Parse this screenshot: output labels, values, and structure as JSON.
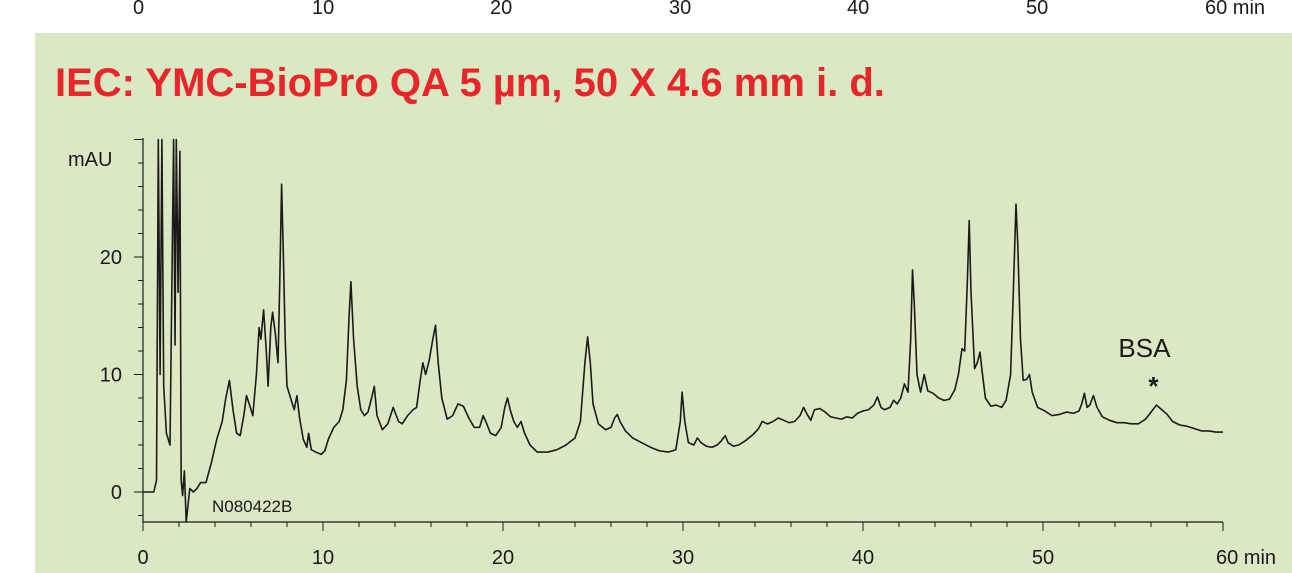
{
  "colors": {
    "panel_background": "#dbe8c4",
    "title": "#e8262a",
    "trace": "#1a1a1a"
  },
  "top_strip": {
    "tick_labels": [
      "0",
      "10",
      "20",
      "30",
      "40",
      "50",
      "60 min"
    ]
  },
  "chart_data": {
    "type": "line",
    "title": "IEC: YMC-BioPro QA 5 µm, 50 X 4.6 mm i. d.",
    "xlabel": "min",
    "ylabel": "mAU",
    "xlim": [
      0,
      60
    ],
    "ylim": [
      -2.8,
      30
    ],
    "x_ticks": [
      0,
      10,
      20,
      30,
      40,
      50,
      60
    ],
    "x_tick_labels": [
      "0",
      "10",
      "20",
      "30",
      "40",
      "50",
      "60 min"
    ],
    "y_ticks": [
      0,
      10,
      20
    ],
    "y_tick_labels": [
      "0",
      "10",
      "20"
    ],
    "grid": false,
    "sample_code": "N080422B",
    "annotations": [
      {
        "label": "BSA",
        "marker": "*",
        "x": 56.3,
        "y": 7.4
      }
    ],
    "series": [
      {
        "points": [
          [
            0,
            0
          ],
          [
            0.6,
            0
          ],
          [
            0.75,
            1
          ],
          [
            0.85,
            30
          ],
          [
            0.95,
            10
          ],
          [
            1.05,
            30
          ],
          [
            1.15,
            9
          ],
          [
            1.3,
            5
          ],
          [
            1.5,
            4
          ],
          [
            1.7,
            30
          ],
          [
            1.78,
            12.5
          ],
          [
            1.85,
            30
          ],
          [
            1.95,
            17
          ],
          [
            2.05,
            29
          ],
          [
            2.12,
            1
          ],
          [
            2.2,
            -0.3
          ],
          [
            2.3,
            1.8
          ],
          [
            2.4,
            -2.7
          ],
          [
            2.6,
            0.3
          ],
          [
            2.8,
            0
          ],
          [
            3.0,
            0.3
          ],
          [
            3.2,
            0.8
          ],
          [
            3.5,
            0.8
          ],
          [
            3.8,
            2.5
          ],
          [
            4.1,
            4.5
          ],
          [
            4.4,
            6
          ],
          [
            4.6,
            8
          ],
          [
            4.8,
            9.5
          ],
          [
            5.0,
            7
          ],
          [
            5.2,
            5
          ],
          [
            5.4,
            4.8
          ],
          [
            5.6,
            6.5
          ],
          [
            5.75,
            8.2
          ],
          [
            5.9,
            7.5
          ],
          [
            6.1,
            6.5
          ],
          [
            6.3,
            10
          ],
          [
            6.45,
            14
          ],
          [
            6.55,
            13
          ],
          [
            6.7,
            15.5
          ],
          [
            6.85,
            12
          ],
          [
            6.95,
            9
          ],
          [
            7.1,
            14
          ],
          [
            7.2,
            15.3
          ],
          [
            7.35,
            13.5
          ],
          [
            7.5,
            11
          ],
          [
            7.6,
            18
          ],
          [
            7.7,
            26.2
          ],
          [
            7.8,
            20
          ],
          [
            7.9,
            13
          ],
          [
            8.0,
            9
          ],
          [
            8.2,
            8
          ],
          [
            8.4,
            7
          ],
          [
            8.55,
            8.2
          ],
          [
            8.7,
            6.3
          ],
          [
            8.9,
            4.5
          ],
          [
            9.1,
            3.8
          ],
          [
            9.2,
            5
          ],
          [
            9.35,
            3.6
          ],
          [
            9.6,
            3.4
          ],
          [
            9.9,
            3.2
          ],
          [
            10.1,
            3.5
          ],
          [
            10.3,
            4.5
          ],
          [
            10.6,
            5.5
          ],
          [
            10.9,
            6
          ],
          [
            11.1,
            7
          ],
          [
            11.3,
            9.5
          ],
          [
            11.45,
            15
          ],
          [
            11.55,
            17.9
          ],
          [
            11.7,
            13
          ],
          [
            11.9,
            9
          ],
          [
            12.1,
            7
          ],
          [
            12.3,
            6.5
          ],
          [
            12.5,
            6.8
          ],
          [
            12.7,
            8
          ],
          [
            12.85,
            9
          ],
          [
            13.0,
            6.5
          ],
          [
            13.3,
            5.3
          ],
          [
            13.6,
            5.8
          ],
          [
            13.9,
            7.2
          ],
          [
            14.2,
            6
          ],
          [
            14.4,
            5.8
          ],
          [
            14.7,
            6.5
          ],
          [
            15.0,
            7
          ],
          [
            15.2,
            7.2
          ],
          [
            15.4,
            9.5
          ],
          [
            15.55,
            11
          ],
          [
            15.7,
            10
          ],
          [
            15.9,
            11.2
          ],
          [
            16.1,
            13
          ],
          [
            16.25,
            14.2
          ],
          [
            16.4,
            11
          ],
          [
            16.6,
            8
          ],
          [
            16.9,
            6.2
          ],
          [
            17.2,
            6.5
          ],
          [
            17.5,
            7.5
          ],
          [
            17.8,
            7.3
          ],
          [
            18.1,
            6.3
          ],
          [
            18.4,
            5.5
          ],
          [
            18.7,
            5.5
          ],
          [
            18.9,
            6.5
          ],
          [
            19.1,
            5.8
          ],
          [
            19.3,
            5
          ],
          [
            19.6,
            4.8
          ],
          [
            19.9,
            5.5
          ],
          [
            20.1,
            7.2
          ],
          [
            20.25,
            8
          ],
          [
            20.4,
            7
          ],
          [
            20.6,
            6
          ],
          [
            20.8,
            5.5
          ],
          [
            21.0,
            6
          ],
          [
            21.2,
            5
          ],
          [
            21.5,
            4
          ],
          [
            21.9,
            3.4
          ],
          [
            22.5,
            3.4
          ],
          [
            23.0,
            3.6
          ],
          [
            23.5,
            4
          ],
          [
            24.0,
            4.6
          ],
          [
            24.3,
            6
          ],
          [
            24.55,
            11
          ],
          [
            24.7,
            13.2
          ],
          [
            24.85,
            11
          ],
          [
            25.0,
            7.5
          ],
          [
            25.3,
            5.8
          ],
          [
            25.7,
            5.3
          ],
          [
            26.0,
            5.5
          ],
          [
            26.2,
            6.3
          ],
          [
            26.35,
            6.6
          ],
          [
            26.5,
            6
          ],
          [
            26.8,
            5.2
          ],
          [
            27.2,
            4.6
          ],
          [
            27.7,
            4.2
          ],
          [
            28.2,
            3.8
          ],
          [
            28.7,
            3.5
          ],
          [
            29.2,
            3.4
          ],
          [
            29.6,
            3.6
          ],
          [
            29.85,
            6
          ],
          [
            29.95,
            8.5
          ],
          [
            30.1,
            6
          ],
          [
            30.3,
            4.2
          ],
          [
            30.6,
            4
          ],
          [
            30.8,
            4.6
          ],
          [
            31.0,
            4.2
          ],
          [
            31.3,
            3.9
          ],
          [
            31.6,
            3.8
          ],
          [
            31.9,
            4
          ],
          [
            32.1,
            4.3
          ],
          [
            32.35,
            4.8
          ],
          [
            32.5,
            4.2
          ],
          [
            32.8,
            3.9
          ],
          [
            33.1,
            4
          ],
          [
            33.5,
            4.4
          ],
          [
            33.9,
            4.9
          ],
          [
            34.2,
            5.4
          ],
          [
            34.4,
            6
          ],
          [
            34.7,
            5.8
          ],
          [
            35.0,
            6
          ],
          [
            35.3,
            6.3
          ],
          [
            35.6,
            6.1
          ],
          [
            35.9,
            5.9
          ],
          [
            36.2,
            6
          ],
          [
            36.5,
            6.5
          ],
          [
            36.7,
            7.2
          ],
          [
            36.9,
            6.6
          ],
          [
            37.1,
            6.1
          ],
          [
            37.3,
            7
          ],
          [
            37.6,
            7.1
          ],
          [
            37.9,
            6.8
          ],
          [
            38.2,
            6.4
          ],
          [
            38.5,
            6.3
          ],
          [
            38.8,
            6.2
          ],
          [
            39.1,
            6.4
          ],
          [
            39.4,
            6.3
          ],
          [
            39.7,
            6.7
          ],
          [
            40.0,
            6.9
          ],
          [
            40.3,
            7
          ],
          [
            40.6,
            7.4
          ],
          [
            40.8,
            8.1
          ],
          [
            41.0,
            7.2
          ],
          [
            41.2,
            7
          ],
          [
            41.5,
            7.2
          ],
          [
            41.7,
            7.8
          ],
          [
            41.9,
            7.5
          ],
          [
            42.1,
            8
          ],
          [
            42.3,
            9.2
          ],
          [
            42.5,
            8.5
          ],
          [
            42.65,
            13
          ],
          [
            42.75,
            18.9
          ],
          [
            42.85,
            16
          ],
          [
            43.0,
            10
          ],
          [
            43.2,
            8.5
          ],
          [
            43.4,
            10
          ],
          [
            43.6,
            8.6
          ],
          [
            43.9,
            8.4
          ],
          [
            44.2,
            8
          ],
          [
            44.5,
            7.8
          ],
          [
            44.8,
            7.9
          ],
          [
            45.1,
            8.7
          ],
          [
            45.3,
            10
          ],
          [
            45.5,
            12.2
          ],
          [
            45.65,
            12
          ],
          [
            45.8,
            18
          ],
          [
            45.9,
            23.1
          ],
          [
            46.0,
            17
          ],
          [
            46.2,
            10.5
          ],
          [
            46.35,
            11
          ],
          [
            46.5,
            11.9
          ],
          [
            46.6,
            10.5
          ],
          [
            46.8,
            8
          ],
          [
            47.1,
            7.3
          ],
          [
            47.4,
            7.4
          ],
          [
            47.7,
            7.2
          ],
          [
            47.95,
            7.8
          ],
          [
            48.2,
            10
          ],
          [
            48.35,
            17
          ],
          [
            48.5,
            24.5
          ],
          [
            48.6,
            21
          ],
          [
            48.75,
            13
          ],
          [
            48.9,
            9.5
          ],
          [
            49.1,
            9.6
          ],
          [
            49.25,
            10
          ],
          [
            49.4,
            8.5
          ],
          [
            49.7,
            7.2
          ],
          [
            50.1,
            6.9
          ],
          [
            50.5,
            6.5
          ],
          [
            50.9,
            6.6
          ],
          [
            51.3,
            6.8
          ],
          [
            51.7,
            6.7
          ],
          [
            52.0,
            6.9
          ],
          [
            52.15,
            7.5
          ],
          [
            52.3,
            8.4
          ],
          [
            52.45,
            7.2
          ],
          [
            52.6,
            7.4
          ],
          [
            52.8,
            8.2
          ],
          [
            53.0,
            7.2
          ],
          [
            53.3,
            6.4
          ],
          [
            53.7,
            6.1
          ],
          [
            54.1,
            5.9
          ],
          [
            54.5,
            5.9
          ],
          [
            54.9,
            5.8
          ],
          [
            55.3,
            5.8
          ],
          [
            55.7,
            6.2
          ],
          [
            56.0,
            6.8
          ],
          [
            56.3,
            7.4
          ],
          [
            56.6,
            7
          ],
          [
            56.9,
            6.6
          ],
          [
            57.2,
            6
          ],
          [
            57.6,
            5.7
          ],
          [
            58.0,
            5.6
          ],
          [
            58.4,
            5.4
          ],
          [
            58.8,
            5.2
          ],
          [
            59.2,
            5.2
          ],
          [
            59.6,
            5.1
          ],
          [
            60.0,
            5.1
          ]
        ]
      }
    ]
  }
}
